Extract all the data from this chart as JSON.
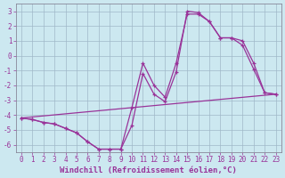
{
  "background_color": "#cce8f0",
  "grid_color": "#a0b8c8",
  "line_color": "#993399",
  "xlim": [
    -0.5,
    23.5
  ],
  "ylim": [
    -6.5,
    3.5
  ],
  "xticks": [
    0,
    1,
    2,
    3,
    4,
    5,
    6,
    7,
    8,
    9,
    10,
    11,
    12,
    13,
    14,
    15,
    16,
    17,
    18,
    19,
    20,
    21,
    22,
    23
  ],
  "yticks": [
    -6,
    -5,
    -4,
    -3,
    -2,
    -1,
    0,
    1,
    2,
    3
  ],
  "xlabel": "Windchill (Refroidissement éolien,°C)",
  "tick_fontsize": 5.5,
  "label_fontsize": 6.5,
  "line1_x": [
    0,
    1,
    2,
    3,
    4,
    5,
    6,
    7,
    8,
    9,
    10,
    11,
    12,
    13,
    14,
    15,
    16,
    17,
    18,
    19,
    20,
    21,
    22,
    23
  ],
  "line1_y": [
    -4.2,
    -4.3,
    -4.5,
    -4.6,
    -4.9,
    -5.2,
    -5.8,
    -6.3,
    -6.3,
    -6.3,
    -4.7,
    -1.2,
    -2.6,
    -3.1,
    -1.1,
    3.0,
    2.9,
    2.3,
    1.2,
    1.2,
    0.7,
    -0.9,
    -2.5,
    -2.6
  ],
  "line2_x": [
    0,
    1,
    2,
    3,
    4,
    5,
    6,
    7,
    8,
    9,
    10,
    11,
    12,
    13,
    14,
    15,
    16,
    17,
    18,
    19,
    20,
    21,
    22,
    23
  ],
  "line2_y": [
    -4.2,
    -4.3,
    -4.5,
    -4.6,
    -4.9,
    -5.2,
    -5.8,
    -6.3,
    -6.3,
    -6.3,
    -3.5,
    -0.5,
    -2.0,
    -2.8,
    -0.5,
    2.8,
    2.8,
    2.3,
    1.2,
    1.2,
    1.0,
    -0.5,
    -2.5,
    -2.6
  ],
  "line3_x": [
    0,
    23
  ],
  "line3_y": [
    -4.2,
    -2.6
  ]
}
